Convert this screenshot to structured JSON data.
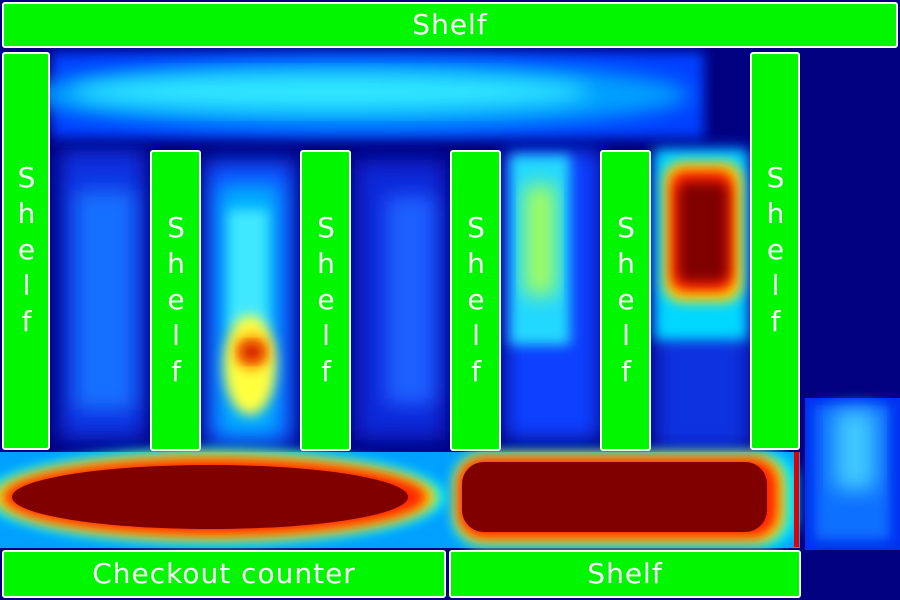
{
  "labels": {
    "top_shelf": "Shelf",
    "left_wall_shelf": "Shelf",
    "aisle_shelf_1": "Shelf",
    "aisle_shelf_2": "Shelf",
    "aisle_shelf_3": "Shelf",
    "aisle_shelf_4": "Shelf",
    "right_wall_shelf": "Shelf",
    "checkout_counter": "Checkout counter",
    "bottom_shelf": "Shelf"
  },
  "colors": {
    "label_fill": "#00f700",
    "label_border": "#ffffff",
    "heat_low": "#000080",
    "heat_mid": "#00ffff",
    "heat_high": "#800000"
  }
}
